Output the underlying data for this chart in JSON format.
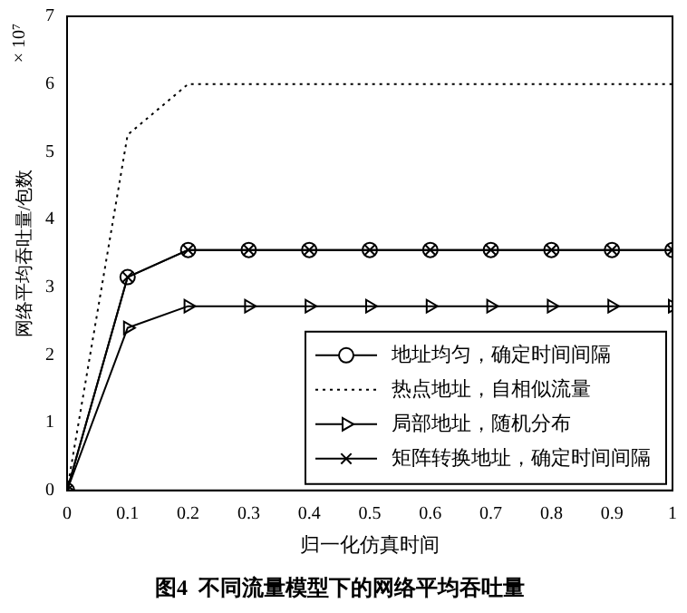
{
  "chart_data": {
    "type": "line",
    "title": "图4  不同流量模型下的网络平均吞吐量",
    "xlabel": "归一化仿真时间",
    "ylabel": "网络平均吞吐量/包数",
    "annotations": [
      "× 10⁷"
    ],
    "x": [
      0,
      0.1,
      0.2,
      0.3,
      0.4,
      0.5,
      0.6,
      0.7,
      0.8,
      0.9,
      1
    ],
    "series": [
      {
        "name": "地址均匀，确定时间间隔",
        "color": "#000000",
        "marker": "circle",
        "line_style": "solid",
        "values": [
          0,
          3.15,
          3.55,
          3.55,
          3.55,
          3.55,
          3.55,
          3.55,
          3.55,
          3.55,
          3.55
        ]
      },
      {
        "name": "热点地址，自相似流量",
        "color": "#000000",
        "marker": "none",
        "line_style": "dotted",
        "values": [
          0,
          5.25,
          6.0,
          6.0,
          6.0,
          6.0,
          6.0,
          6.0,
          6.0,
          6.0,
          6.0
        ]
      },
      {
        "name": "局部地址，随机分布",
        "color": "#000000",
        "marker": "triangle",
        "line_style": "solid",
        "values": [
          0,
          2.4,
          2.72,
          2.72,
          2.72,
          2.72,
          2.72,
          2.72,
          2.72,
          2.72,
          2.72
        ]
      },
      {
        "name": "矩阵转换地址，确定时间间隔",
        "color": "#000000",
        "marker": "cross",
        "line_style": "solid",
        "values": [
          0,
          3.15,
          3.55,
          3.55,
          3.55,
          3.55,
          3.55,
          3.55,
          3.55,
          3.55,
          3.55
        ]
      }
    ],
    "xlim": [
      0,
      1
    ],
    "xticks": [
      0,
      0.1,
      0.2,
      0.3,
      0.4,
      0.5,
      0.6,
      0.7,
      0.8,
      0.9,
      1
    ],
    "ylim": [
      0,
      7
    ],
    "yticks": [
      0,
      1,
      2,
      3,
      4,
      5,
      6,
      7
    ],
    "grid": false,
    "legend": "bottom right"
  }
}
